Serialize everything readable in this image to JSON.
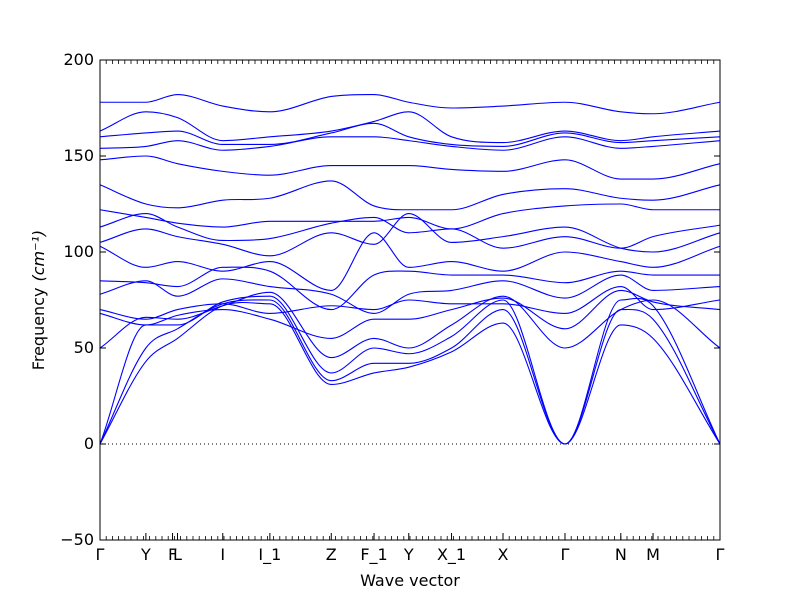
{
  "chart_data": {
    "type": "line",
    "xlabel": "Wave vector",
    "ylabel": "Frequency",
    "ylabel_unit": "(cm⁻¹)",
    "ylim": [
      -50,
      200
    ],
    "yticks": [
      -50,
      0,
      50,
      100,
      150,
      200
    ],
    "grid": false,
    "line_color": "#0000ff",
    "zero_line": {
      "y": 0,
      "style": "dotted",
      "color": "#000000"
    },
    "x_range": [
      0,
      1
    ],
    "symmetry_points": [
      {
        "label": "Γ",
        "x": 0.0
      },
      {
        "label": "Y",
        "x": 0.074
      },
      {
        "label": "F",
        "x": 0.117
      },
      {
        "label": "L",
        "x": 0.125
      },
      {
        "label": "I",
        "x": 0.198
      },
      {
        "label": "I_1",
        "x": 0.274
      },
      {
        "label": "Z",
        "x": 0.373
      },
      {
        "label": "F_1",
        "x": 0.442
      },
      {
        "label": "Y",
        "x": 0.498
      },
      {
        "label": "X_1",
        "x": 0.567
      },
      {
        "label": "X",
        "x": 0.65
      },
      {
        "label": "Γ",
        "x": 0.75
      },
      {
        "label": "N",
        "x": 0.84
      },
      {
        "label": "M",
        "x": 0.892
      },
      {
        "label": "Γ",
        "x": 1.0
      }
    ],
    "x_nodes": [
      0,
      0.074,
      0.125,
      0.198,
      0.274,
      0.373,
      0.442,
      0.498,
      0.567,
      0.65,
      0.75,
      0.84,
      0.892,
      1.0
    ],
    "series": [
      {
        "values": [
          0,
          43,
          55,
          72,
          73,
          31,
          37,
          40,
          48,
          63,
          0,
          62,
          55,
          0
        ]
      },
      {
        "values": [
          0,
          50,
          60,
          73,
          75,
          33,
          42,
          42,
          50,
          70,
          0,
          70,
          65,
          0
        ]
      },
      {
        "values": [
          0,
          62,
          62,
          74,
          77,
          37,
          50,
          47,
          56,
          75,
          0,
          75,
          72,
          0
        ]
      },
      {
        "values": [
          50,
          66,
          65,
          72,
          79,
          45,
          55,
          50,
          62,
          77,
          50,
          70,
          75,
          50
        ]
      },
      {
        "values": [
          68,
          62,
          67,
          70,
          65,
          55,
          65,
          65,
          70,
          76,
          60,
          80,
          74,
          70
        ]
      },
      {
        "values": [
          70,
          65,
          70,
          73,
          68,
          72,
          70,
          75,
          73,
          73,
          68,
          82,
          70,
          75
        ]
      },
      {
        "values": [
          78,
          85,
          77,
          86,
          82,
          78,
          68,
          78,
          80,
          85,
          76,
          88,
          80,
          82
        ]
      },
      {
        "values": [
          85,
          84,
          82,
          92,
          90,
          70,
          88,
          90,
          88,
          88,
          84,
          90,
          88,
          88
        ]
      },
      {
        "values": [
          103,
          92,
          95,
          90,
          95,
          80,
          110,
          92,
          95,
          90,
          100,
          95,
          92,
          103
        ]
      },
      {
        "values": [
          105,
          112,
          108,
          104,
          98,
          110,
          104,
          120,
          105,
          108,
          113,
          102,
          100,
          110
        ]
      },
      {
        "values": [
          113,
          120,
          113,
          106,
          107,
          115,
          118,
          110,
          112,
          102,
          108,
          102,
          108,
          114
        ]
      },
      {
        "values": [
          122,
          118,
          115,
          113,
          116,
          116,
          116,
          118,
          112,
          120,
          124,
          125,
          122,
          122
        ]
      },
      {
        "values": [
          135,
          125,
          123,
          127,
          128,
          137,
          124,
          122,
          122,
          130,
          133,
          128,
          127,
          135
        ]
      },
      {
        "values": [
          148,
          150,
          146,
          142,
          140,
          145,
          145,
          145,
          143,
          142,
          148,
          138,
          138,
          146
        ]
      },
      {
        "values": [
          154,
          155,
          158,
          153,
          155,
          160,
          160,
          158,
          155,
          153,
          160,
          154,
          155,
          158
        ]
      },
      {
        "values": [
          160,
          162,
          163,
          156,
          156,
          162,
          167,
          160,
          156,
          155,
          162,
          157,
          158,
          160
        ]
      },
      {
        "values": [
          163,
          173,
          170,
          158,
          160,
          163,
          168,
          173,
          160,
          157,
          163,
          158,
          160,
          163
        ]
      },
      {
        "values": [
          178,
          178,
          182,
          176,
          173,
          181,
          182,
          178,
          175,
          176,
          178,
          173,
          172,
          178
        ]
      }
    ]
  }
}
